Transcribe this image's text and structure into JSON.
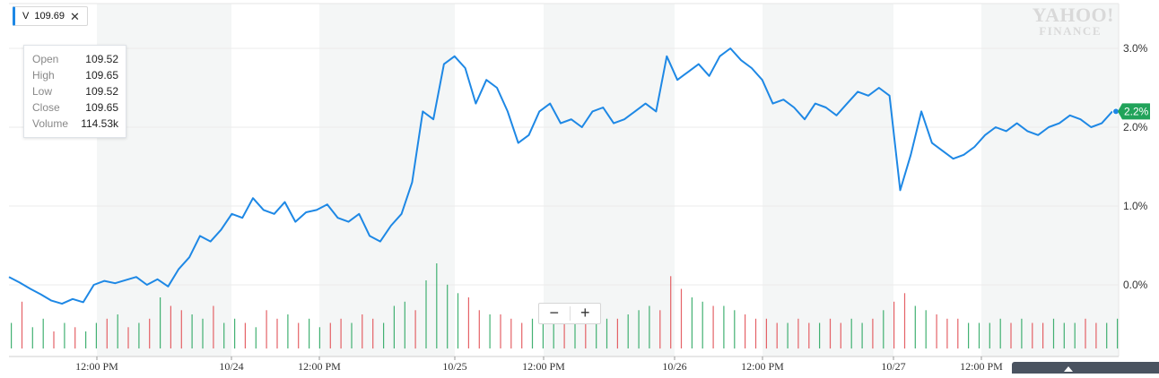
{
  "symbol": {
    "ticker": "V",
    "price": "109.69",
    "close_glyph": "✕"
  },
  "tooltip": {
    "rows": [
      {
        "key": "Open",
        "value": "109.52"
      },
      {
        "key": "High",
        "value": "109.65"
      },
      {
        "key": "Low",
        "value": "109.52"
      },
      {
        "key": "Close",
        "value": "109.65"
      },
      {
        "key": "Volume",
        "value": "114.53k"
      }
    ]
  },
  "logo": {
    "line1": "YAHOO!",
    "line2": "FINANCE"
  },
  "zoom": {
    "minus": "−",
    "plus": "+"
  },
  "current_badge": "2.2%",
  "colors": {
    "line": "#1e88e5",
    "badge": "#21a35a",
    "vol_up": "#21a35a",
    "vol_down": "#e0474c",
    "band": "#f4f6f6"
  },
  "chart_data": {
    "type": "line",
    "title": "",
    "xlabel": "",
    "ylabel": "",
    "x_tick_labels": [
      "12:00 PM",
      "10/24",
      "12:00 PM",
      "10/25",
      "12:00 PM",
      "10/26",
      "12:00 PM",
      "10/27",
      "12:00 PM"
    ],
    "y_tick_labels": [
      "3.0%",
      "2.0%",
      "1.0%",
      "0.0%"
    ],
    "y_ticks": [
      3.0,
      2.0,
      1.0,
      0.0
    ],
    "ylim": [
      -0.6,
      3.6
    ],
    "grid": true,
    "series": [
      {
        "values": [
          0.1,
          0.03,
          -0.05,
          -0.12,
          -0.2,
          -0.24,
          -0.18,
          -0.22,
          0.0,
          0.05,
          0.02,
          0.06,
          0.1,
          0.0,
          0.07,
          -0.02,
          0.2,
          0.35,
          0.62,
          0.55,
          0.7,
          0.9,
          0.85,
          1.1,
          0.95,
          0.9,
          1.05,
          0.8,
          0.92,
          0.95,
          1.02,
          0.85,
          0.8,
          0.9,
          0.62,
          0.55,
          0.75,
          0.9,
          1.3,
          2.2,
          2.1,
          2.8,
          2.9,
          2.75,
          2.3,
          2.6,
          2.5,
          2.2,
          1.8,
          1.9,
          2.2,
          2.3,
          2.05,
          2.1,
          2.0,
          2.2,
          2.25,
          2.05,
          2.1,
          2.2,
          2.3,
          2.2,
          2.9,
          2.6,
          2.7,
          2.8,
          2.65,
          2.9,
          3.0,
          2.85,
          2.75,
          2.6,
          2.3,
          2.35,
          2.25,
          2.1,
          2.3,
          2.25,
          2.15,
          2.3,
          2.45,
          2.4,
          2.5,
          2.4,
          1.2,
          1.65,
          2.2,
          1.8,
          1.7,
          1.6,
          1.65,
          1.75,
          1.9,
          2.0,
          1.95,
          2.05,
          1.95,
          1.9,
          2.0,
          2.05,
          2.15,
          2.1,
          2.0,
          2.05,
          2.2
        ]
      }
    ],
    "current_value": 2.2,
    "volume": {
      "values": [
        0.3,
        0.55,
        0.25,
        0.35,
        0.2,
        0.3,
        0.25,
        0.2,
        0.3,
        0.35,
        0.4,
        0.25,
        0.3,
        0.35,
        0.6,
        0.5,
        0.45,
        0.4,
        0.35,
        0.5,
        0.3,
        0.35,
        0.3,
        0.25,
        0.45,
        0.35,
        0.4,
        0.3,
        0.35,
        0.25,
        0.3,
        0.35,
        0.3,
        0.4,
        0.35,
        0.3,
        0.5,
        0.55,
        0.45,
        0.8,
        1.0,
        0.75,
        0.65,
        0.6,
        0.45,
        0.4,
        0.4,
        0.35,
        0.3,
        0.35,
        0.3,
        0.35,
        0.3,
        0.35,
        0.3,
        0.3,
        0.35,
        0.35,
        0.4,
        0.45,
        0.5,
        0.45,
        0.85,
        0.7,
        0.6,
        0.55,
        0.5,
        0.5,
        0.45,
        0.4,
        0.35,
        0.35,
        0.3,
        0.3,
        0.35,
        0.3,
        0.3,
        0.35,
        0.3,
        0.35,
        0.3,
        0.35,
        0.45,
        0.55,
        0.65,
        0.5,
        0.45,
        0.4,
        0.35,
        0.35,
        0.3,
        0.3,
        0.3,
        0.35,
        0.3,
        0.35,
        0.3,
        0.3,
        0.35,
        0.3,
        0.3,
        0.35,
        0.3,
        0.3,
        0.35
      ],
      "up": [
        true,
        false,
        true,
        true,
        false,
        true,
        false,
        true,
        true,
        false,
        true,
        false,
        true,
        false,
        true,
        false,
        false,
        true,
        true,
        false,
        true,
        true,
        false,
        true,
        false,
        false,
        true,
        false,
        true,
        true,
        false,
        false,
        true,
        false,
        false,
        true,
        true,
        true,
        false,
        true,
        true,
        true,
        true,
        false,
        false,
        true,
        false,
        false,
        false,
        true,
        true,
        true,
        false,
        true,
        false,
        true,
        true,
        false,
        true,
        true,
        true,
        false,
        false,
        false,
        true,
        true,
        false,
        true,
        true,
        false,
        false,
        false,
        false,
        true,
        false,
        false,
        true,
        false,
        false,
        true,
        true,
        false,
        true,
        false,
        false,
        true,
        true,
        false,
        false,
        false,
        true,
        true,
        true,
        true,
        false,
        true,
        false,
        false,
        true,
        true,
        true,
        false,
        false,
        true,
        true
      ]
    }
  }
}
